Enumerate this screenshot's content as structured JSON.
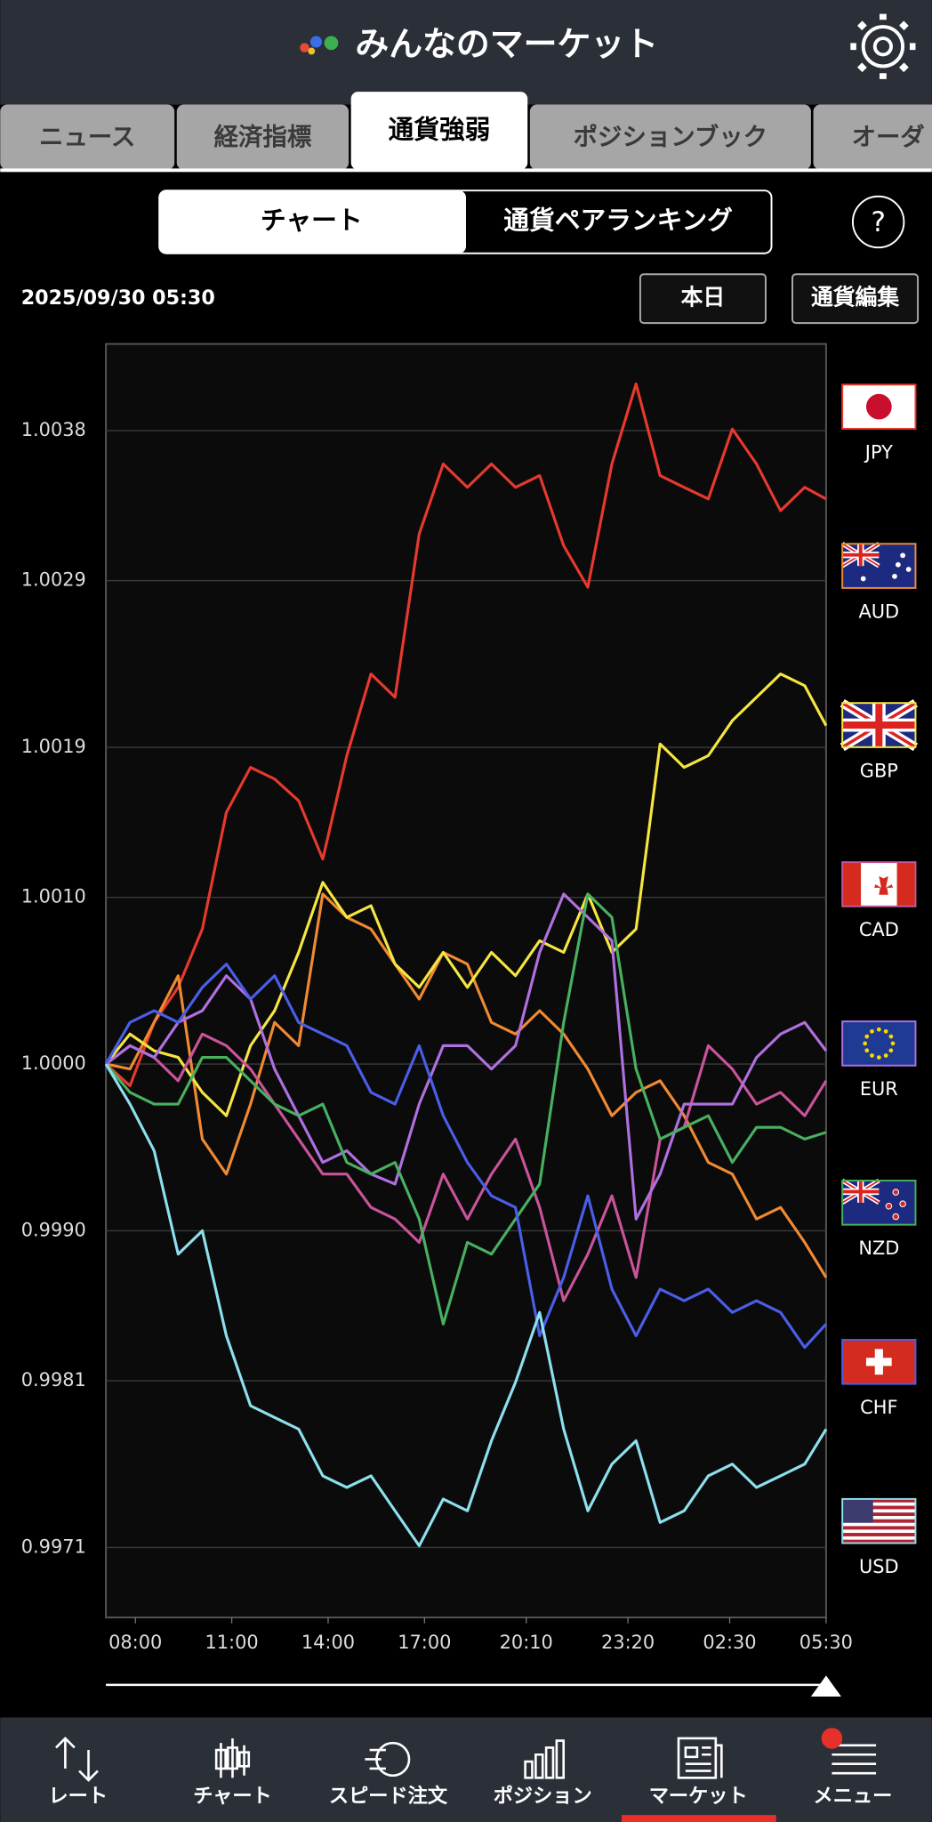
{
  "header": {
    "title": "みんなのマーケット"
  },
  "tabs": [
    "ニュース",
    "経済指標",
    "通貨強弱",
    "ポジションブック",
    "オーダ"
  ],
  "segments": [
    "チャート",
    "通貨ペアランキング"
  ],
  "help": "?",
  "timestamp": "2025/09/30 05:30",
  "buttons": [
    "本日",
    "通貨編集"
  ],
  "nav": [
    "レート",
    "チャート",
    "スピード注文",
    "ポジション",
    "マーケット",
    "メニュー"
  ],
  "chart_data": {
    "type": "line",
    "grid": true,
    "x": [
      425,
      470,
      515,
      560,
      605,
      650,
      695,
      740,
      785,
      830,
      875,
      920,
      965,
      1010,
      1055,
      1100,
      1145,
      1190,
      1235,
      1280,
      1325,
      1370,
      1415,
      1460,
      1505,
      1550,
      1595,
      1640,
      1685,
      1730,
      1770
    ],
    "xlim": [
      425,
      1770
    ],
    "xticks": [
      {
        "value": 480,
        "label": "08:00"
      },
      {
        "value": 660,
        "label": "11:00"
      },
      {
        "value": 840,
        "label": "14:00"
      },
      {
        "value": 1020,
        "label": "17:00"
      },
      {
        "value": 1210,
        "label": "20:10"
      },
      {
        "value": 1400,
        "label": "23:20"
      },
      {
        "value": 1590,
        "label": "02:30"
      },
      {
        "value": 1770,
        "label": "05:30"
      }
    ],
    "ylim": [
      0.99668,
      1.00432
    ],
    "yticks": [
      0.9971,
      0.9981,
      {
        "value": 0.999,
        "label": "0.9990"
      },
      {
        "value": 1,
        "label": "1.0000"
      },
      {
        "value": 1.001,
        "label": "1.0010"
      },
      1.0019,
      1.0029,
      1.0038
    ],
    "series": [
      {
        "name": "JPY",
        "color": "#e8392e",
        "values": [
          1,
          0.99987,
          1.00025,
          1.00046,
          1.00081,
          1.00151,
          1.00178,
          1.00171,
          1.00158,
          1.00123,
          1.00185,
          1.00234,
          1.0022,
          1.00318,
          1.0036,
          1.00346,
          1.0036,
          1.00346,
          1.00353,
          1.00311,
          1.00286,
          1.0036,
          1.00408,
          1.00353,
          1.00346,
          1.00339,
          1.00381,
          1.0036,
          1.00332,
          1.00346,
          1.00339
        ]
      },
      {
        "name": "AUD",
        "color": "#f08a32",
        "values": [
          1,
          0.99997,
          1.00025,
          1.00053,
          0.99955,
          0.99934,
          0.99976,
          1.00025,
          1.00011,
          1.00102,
          1.00088,
          1.00081,
          1.0006,
          1.00039,
          1.00067,
          1.0006,
          1.00025,
          1.00018,
          1.00032,
          1.00018,
          0.99997,
          0.99969,
          0.99983,
          0.9999,
          0.99969,
          0.99941,
          0.99934,
          0.99907,
          0.99914,
          0.99893,
          0.99872
        ]
      },
      {
        "name": "GBP",
        "color": "#f5e642",
        "values": [
          1,
          1.00018,
          1.00008,
          1.00004,
          0.99983,
          0.99969,
          1.00011,
          1.00032,
          1.00067,
          1.00109,
          1.00088,
          1.00095,
          1.0006,
          1.00046,
          1.00067,
          1.00046,
          1.00067,
          1.00053,
          1.00074,
          1.00067,
          1.00102,
          1.00067,
          1.00081,
          1.00192,
          1.00178,
          1.00185,
          1.00206,
          1.0022,
          1.00234,
          1.00227,
          1.00203
        ]
      },
      {
        "name": "CAD",
        "color": "#c8549a",
        "values": [
          1,
          1.00011,
          1.00004,
          0.9999,
          1.00018,
          1.00011,
          0.99997,
          0.99976,
          0.99955,
          0.99934,
          0.99934,
          0.99914,
          0.99907,
          0.99893,
          0.99934,
          0.99907,
          0.99934,
          0.99955,
          0.99914,
          0.99858,
          0.99886,
          0.99921,
          0.99872,
          0.99955,
          0.99962,
          1.00011,
          0.99997,
          0.99976,
          0.99983,
          0.99969,
          0.9999
        ]
      },
      {
        "name": "EUR",
        "color": "#b070e0",
        "values": [
          1,
          1.00011,
          1.00004,
          1.00025,
          1.00032,
          1.00053,
          1.00039,
          0.99997,
          0.99969,
          0.99941,
          0.99948,
          0.99934,
          0.99928,
          0.99976,
          1.00011,
          1.00011,
          0.99997,
          1.00011,
          1.00067,
          1.00102,
          1.00088,
          1.00074,
          0.99907,
          0.99934,
          0.99976,
          0.99976,
          0.99976,
          1.00004,
          1.00018,
          1.00025,
          1.00008
        ]
      },
      {
        "name": "NZD",
        "color": "#48b060",
        "values": [
          1,
          0.99983,
          0.99976,
          0.99976,
          1.00004,
          1.00004,
          0.9999,
          0.99976,
          0.99969,
          0.99976,
          0.99941,
          0.99934,
          0.99941,
          0.99907,
          0.99844,
          0.99893,
          0.99886,
          0.99907,
          0.99928,
          1.00025,
          1.00102,
          1.00088,
          0.99997,
          0.99955,
          0.99962,
          0.99969,
          0.99941,
          0.99962,
          0.99962,
          0.99955,
          0.99959
        ]
      },
      {
        "name": "CHF",
        "color": "#4a5ee8",
        "values": [
          1,
          1.00025,
          1.00032,
          1.00025,
          1.00046,
          1.0006,
          1.00039,
          1.00053,
          1.00025,
          1.00018,
          1.00011,
          0.99983,
          0.99976,
          1.00011,
          0.99969,
          0.99941,
          0.99921,
          0.99914,
          0.99837,
          0.99872,
          0.99921,
          0.99865,
          0.99837,
          0.99865,
          0.99858,
          0.99865,
          0.99851,
          0.99858,
          0.99851,
          0.9983,
          0.99844
        ]
      },
      {
        "name": "USD",
        "color": "#8de0ee",
        "values": [
          1,
          0.99976,
          0.99948,
          0.99886,
          0.999,
          0.99837,
          0.99795,
          0.99788,
          0.99781,
          0.99753,
          0.99746,
          0.99753,
          0.99732,
          0.99711,
          0.99739,
          0.99732,
          0.99774,
          0.99809,
          0.99851,
          0.99781,
          0.99732,
          0.9976,
          0.99774,
          0.99725,
          0.99732,
          0.99753,
          0.9976,
          0.99746,
          0.99753,
          0.9976,
          0.99781
        ]
      }
    ]
  }
}
